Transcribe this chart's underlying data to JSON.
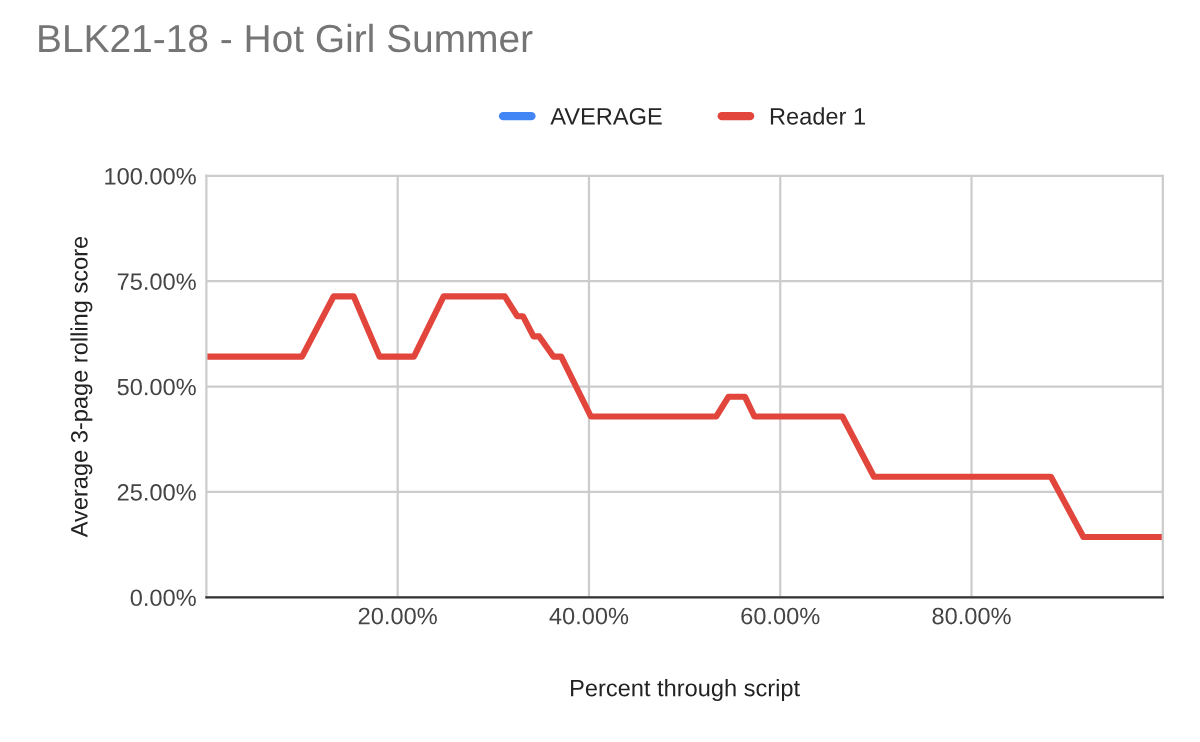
{
  "chart_data": {
    "type": "line",
    "title": "BLK21-18 - Hot Girl Summer",
    "xlabel": "Percent through script",
    "ylabel": "Average 3-page rolling score",
    "x": [
      0,
      10.0,
      13.3,
      15.4,
      18.1,
      21.7,
      24.8,
      31.2,
      32.5,
      33.1,
      34.2,
      34.8,
      36.3,
      37.1,
      40.2,
      53.3,
      54.6,
      56.3,
      57.3,
      66.5,
      69.8,
      88.3,
      91.7,
      100
    ],
    "series": [
      {
        "name": "AVERAGE",
        "color": "#4285f4",
        "values": [
          null,
          null,
          null,
          null,
          null,
          null,
          null,
          null,
          null,
          null,
          null,
          null,
          null,
          null,
          null,
          null,
          null,
          null,
          null,
          null,
          null,
          null,
          null,
          null
        ]
      },
      {
        "name": "Reader 1",
        "color": "#e2453c",
        "values": [
          57.1,
          57.1,
          71.4,
          71.4,
          57.1,
          57.1,
          71.4,
          71.4,
          66.7,
          66.7,
          61.9,
          61.9,
          57.1,
          57.1,
          42.9,
          42.9,
          47.6,
          47.6,
          42.9,
          42.9,
          28.6,
          28.6,
          14.3,
          14.3
        ]
      }
    ],
    "xlim": [
      0,
      100
    ],
    "xticks": [
      {
        "value": 20,
        "label": "20.00%"
      },
      {
        "value": 40,
        "label": "40.00%"
      },
      {
        "value": 60,
        "label": "60.00%"
      },
      {
        "value": 80,
        "label": "80.00%"
      }
    ],
    "ylim": [
      0,
      100
    ],
    "yticks": [
      {
        "value": 0,
        "label": "0.00%"
      },
      {
        "value": 25,
        "label": "25.00%"
      },
      {
        "value": 50,
        "label": "50.00%"
      },
      {
        "value": 75,
        "label": "75.00%"
      },
      {
        "value": 100,
        "label": "100.00%"
      }
    ],
    "grid": true,
    "legend": "top",
    "marker": "none",
    "line_style": "solid"
  }
}
